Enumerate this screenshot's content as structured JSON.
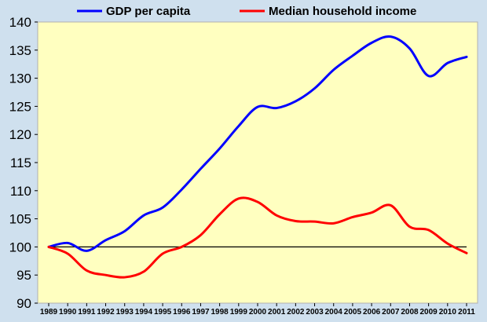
{
  "chart_data": {
    "type": "line",
    "title": "",
    "xlabel": "",
    "ylabel": "",
    "ylim": [
      90,
      140
    ],
    "yticks": [
      90,
      95,
      100,
      105,
      110,
      115,
      120,
      125,
      130,
      135,
      140
    ],
    "categories": [
      "1989",
      "1990",
      "1991",
      "1992",
      "1993",
      "1994",
      "1995",
      "1996",
      "1997",
      "1998",
      "1999",
      "2000",
      "2001",
      "2002",
      "2003",
      "2004",
      "2005",
      "2006",
      "2007",
      "2008",
      "2009",
      "2010",
      "2011"
    ],
    "reference_line": 100,
    "grid": false,
    "legend_position": "top",
    "series": [
      {
        "name": "GDP per capita",
        "color": "#0000ff",
        "values": [
          100.0,
          100.7,
          99.3,
          101.2,
          102.8,
          105.6,
          107.0,
          110.2,
          113.9,
          117.5,
          121.5,
          124.9,
          124.7,
          125.9,
          128.2,
          131.5,
          134.0,
          136.3,
          137.4,
          135.3,
          130.4,
          132.7,
          133.8
        ]
      },
      {
        "name": "Median household income",
        "color": "#ff0000",
        "values": [
          100.0,
          98.8,
          95.8,
          95.0,
          94.6,
          95.6,
          98.8,
          100.0,
          102.1,
          105.8,
          108.6,
          108.0,
          105.6,
          104.6,
          104.5,
          104.2,
          105.3,
          106.1,
          107.4,
          103.6,
          103.0,
          100.6,
          98.9
        ]
      }
    ]
  }
}
